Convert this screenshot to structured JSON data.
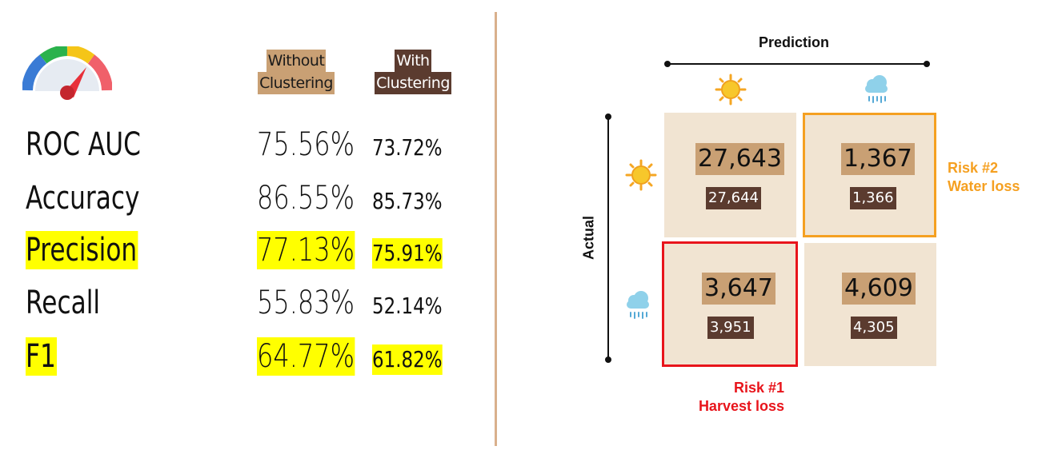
{
  "metrics_table": {
    "headers": {
      "without": [
        "Without",
        "Clustering"
      ],
      "with": [
        "With",
        "Clustering"
      ]
    },
    "rows": [
      {
        "name": "ROC AUC",
        "without": "75.56%",
        "with": "73.72%",
        "highlight": false
      },
      {
        "name": "Accuracy",
        "without": "86.55%",
        "with": "85.73%",
        "highlight": false
      },
      {
        "name": "Precision",
        "without": "77.13%",
        "with": "75.91%",
        "highlight": true
      },
      {
        "name": "Recall",
        "without": "55.83%",
        "with": "52.14%",
        "highlight": false
      },
      {
        "name": "F1",
        "without": "64.77%",
        "with": "61.82%",
        "highlight": true
      }
    ]
  },
  "confusion_matrix": {
    "x_title": "Prediction",
    "y_title": "Actual",
    "cells": {
      "sun_sun": {
        "without": "27,643",
        "with": "27,644"
      },
      "sun_rain": {
        "without": "1,367",
        "with": "1,366"
      },
      "rain_sun": {
        "without": "3,647",
        "with": "3,951"
      },
      "rain_rain": {
        "without": "4,609",
        "with": "4,305"
      }
    },
    "risk1": {
      "title": "Risk #1",
      "label": "Harvest loss",
      "color": "#e8141b"
    },
    "risk2": {
      "title": "Risk #2",
      "label": "Water loss",
      "color": "#f5a021"
    }
  },
  "colors": {
    "header_without_bg": "#c9a074",
    "header_with_bg": "#5b3b2f",
    "highlight": "#ffff00",
    "cell_bg": "#f1e4d2"
  },
  "icons": [
    "gauge-icon",
    "sun-icon",
    "rain-cloud-icon"
  ]
}
